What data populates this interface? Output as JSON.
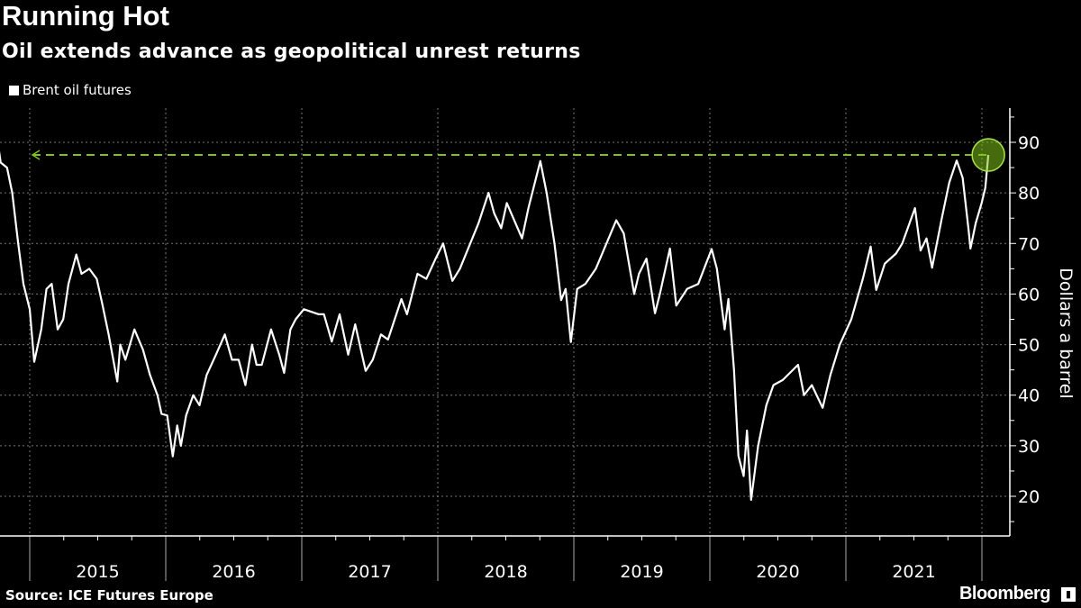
{
  "title": "Running Hot",
  "subtitle": "Oil extends advance as geopolitical unrest returns",
  "legend": "Brent oil futures",
  "source": "Source: ICE Futures Europe",
  "brand": "Bloomberg",
  "colors": {
    "background": "#000000",
    "line": "#ffffff",
    "highlight": "#7fc31c"
  },
  "chart_data": {
    "type": "line",
    "title": "Running Hot",
    "subtitle": "Oil extends advance as geopolitical unrest returns",
    "ylabel": "Dollars a barrel",
    "ylim": [
      12,
      97
    ],
    "yticks": [
      20,
      30,
      40,
      50,
      60,
      70,
      80,
      90
    ],
    "xticks": [
      "2015",
      "2016",
      "2017",
      "2018",
      "2019",
      "2020",
      "2021"
    ],
    "xlim": [
      "2014-10-08",
      "2022-02-20"
    ],
    "grid": true,
    "legend_position": "top-left",
    "series": [
      {
        "name": "Brent oil futures",
        "points": [
          [
            "2014-10-08",
            89.5
          ],
          [
            "2014-10-15",
            86
          ],
          [
            "2014-11-01",
            85
          ],
          [
            "2014-11-15",
            80
          ],
          [
            "2014-12-01",
            70
          ],
          [
            "2014-12-15",
            62
          ],
          [
            "2015-01-01",
            57
          ],
          [
            "2015-01-13",
            46.6
          ],
          [
            "2015-02-01",
            53
          ],
          [
            "2015-02-15",
            61
          ],
          [
            "2015-03-01",
            62
          ],
          [
            "2015-03-17",
            53
          ],
          [
            "2015-04-01",
            55
          ],
          [
            "2015-04-15",
            62
          ],
          [
            "2015-05-06",
            67.8
          ],
          [
            "2015-05-20",
            64
          ],
          [
            "2015-06-10",
            65
          ],
          [
            "2015-06-30",
            63
          ],
          [
            "2015-07-15",
            58
          ],
          [
            "2015-08-01",
            52
          ],
          [
            "2015-08-24",
            42.7
          ],
          [
            "2015-09-01",
            50
          ],
          [
            "2015-09-15",
            47
          ],
          [
            "2015-10-09",
            53
          ],
          [
            "2015-11-01",
            49
          ],
          [
            "2015-11-20",
            44
          ],
          [
            "2015-12-10",
            40
          ],
          [
            "2015-12-21",
            36.3
          ],
          [
            "2016-01-05",
            36
          ],
          [
            "2016-01-20",
            27.9
          ],
          [
            "2016-02-01",
            34
          ],
          [
            "2016-02-11",
            30
          ],
          [
            "2016-02-25",
            36
          ],
          [
            "2016-03-15",
            40
          ],
          [
            "2016-04-01",
            38
          ],
          [
            "2016-04-20",
            44
          ],
          [
            "2016-05-15",
            48
          ],
          [
            "2016-06-08",
            52
          ],
          [
            "2016-06-27",
            47
          ],
          [
            "2016-07-15",
            47
          ],
          [
            "2016-08-02",
            42
          ],
          [
            "2016-08-20",
            50
          ],
          [
            "2016-09-01",
            46
          ],
          [
            "2016-09-15",
            46
          ],
          [
            "2016-10-10",
            53
          ],
          [
            "2016-11-01",
            48
          ],
          [
            "2016-11-14",
            44.4
          ],
          [
            "2016-12-01",
            53
          ],
          [
            "2016-12-15",
            55
          ],
          [
            "2017-01-06",
            57
          ],
          [
            "2017-02-15",
            56
          ],
          [
            "2017-03-01",
            56
          ],
          [
            "2017-03-22",
            50.6
          ],
          [
            "2017-04-12",
            56
          ],
          [
            "2017-05-05",
            48
          ],
          [
            "2017-05-24",
            54
          ],
          [
            "2017-06-21",
            44.8
          ],
          [
            "2017-07-10",
            47
          ],
          [
            "2017-08-01",
            52
          ],
          [
            "2017-08-20",
            51
          ],
          [
            "2017-09-25",
            59
          ],
          [
            "2017-10-10",
            56
          ],
          [
            "2017-11-07",
            64
          ],
          [
            "2017-12-01",
            63
          ],
          [
            "2017-12-26",
            67
          ],
          [
            "2018-01-15",
            70
          ],
          [
            "2018-02-09",
            62.6
          ],
          [
            "2018-03-01",
            65
          ],
          [
            "2018-04-20",
            74
          ],
          [
            "2018-05-17",
            80
          ],
          [
            "2018-06-01",
            76
          ],
          [
            "2018-06-20",
            73
          ],
          [
            "2018-07-05",
            78
          ],
          [
            "2018-08-15",
            71
          ],
          [
            "2018-09-01",
            77
          ],
          [
            "2018-10-03",
            86.3
          ],
          [
            "2018-10-20",
            80
          ],
          [
            "2018-11-10",
            70
          ],
          [
            "2018-11-28",
            58.8
          ],
          [
            "2018-12-10",
            61
          ],
          [
            "2018-12-24",
            50.5
          ],
          [
            "2019-01-10",
            61
          ],
          [
            "2019-02-01",
            62
          ],
          [
            "2019-03-01",
            65
          ],
          [
            "2019-04-25",
            74.6
          ],
          [
            "2019-05-15",
            72
          ],
          [
            "2019-06-12",
            60
          ],
          [
            "2019-06-25",
            64
          ],
          [
            "2019-07-15",
            67
          ],
          [
            "2019-08-07",
            56.2
          ],
          [
            "2019-08-20",
            60
          ],
          [
            "2019-09-16",
            69
          ],
          [
            "2019-10-03",
            57.7
          ],
          [
            "2019-11-01",
            61
          ],
          [
            "2019-12-01",
            62
          ],
          [
            "2020-01-06",
            68.9
          ],
          [
            "2020-01-20",
            65
          ],
          [
            "2020-02-10",
            53
          ],
          [
            "2020-02-20",
            59
          ],
          [
            "2020-03-06",
            45
          ],
          [
            "2020-03-18",
            28
          ],
          [
            "2020-04-01",
            24
          ],
          [
            "2020-04-10",
            33
          ],
          [
            "2020-04-21",
            19.3
          ],
          [
            "2020-05-10",
            30
          ],
          [
            "2020-06-01",
            38
          ],
          [
            "2020-06-20",
            42
          ],
          [
            "2020-07-15",
            43
          ],
          [
            "2020-08-25",
            46
          ],
          [
            "2020-09-10",
            40
          ],
          [
            "2020-10-01",
            42
          ],
          [
            "2020-10-30",
            37.5
          ],
          [
            "2020-11-20",
            44
          ],
          [
            "2020-12-15",
            50
          ],
          [
            "2021-01-15",
            55
          ],
          [
            "2021-02-15",
            63
          ],
          [
            "2021-03-08",
            69.4
          ],
          [
            "2021-03-23",
            60.8
          ],
          [
            "2021-04-15",
            66
          ],
          [
            "2021-05-15",
            68
          ],
          [
            "2021-06-01",
            70
          ],
          [
            "2021-07-05",
            77
          ],
          [
            "2021-07-20",
            68.6
          ],
          [
            "2021-08-05",
            71
          ],
          [
            "2021-08-20",
            65.2
          ],
          [
            "2021-09-15",
            75
          ],
          [
            "2021-10-05",
            82
          ],
          [
            "2021-10-25",
            86.4
          ],
          [
            "2021-11-10",
            83
          ],
          [
            "2021-11-26",
            72.7
          ],
          [
            "2021-12-01",
            69
          ],
          [
            "2021-12-15",
            74
          ],
          [
            "2021-12-31",
            78
          ],
          [
            "2022-01-10",
            81
          ],
          [
            "2022-01-18",
            87.5
          ]
        ]
      }
    ],
    "annotations": [
      {
        "type": "reference-line",
        "value": 87.5,
        "style": "dashed arrow pointing left to 2014 level",
        "color": "#7fc31c"
      },
      {
        "type": "circle",
        "date": "2022-01-18",
        "value": 87.5,
        "color": "#7fc31c"
      }
    ]
  }
}
